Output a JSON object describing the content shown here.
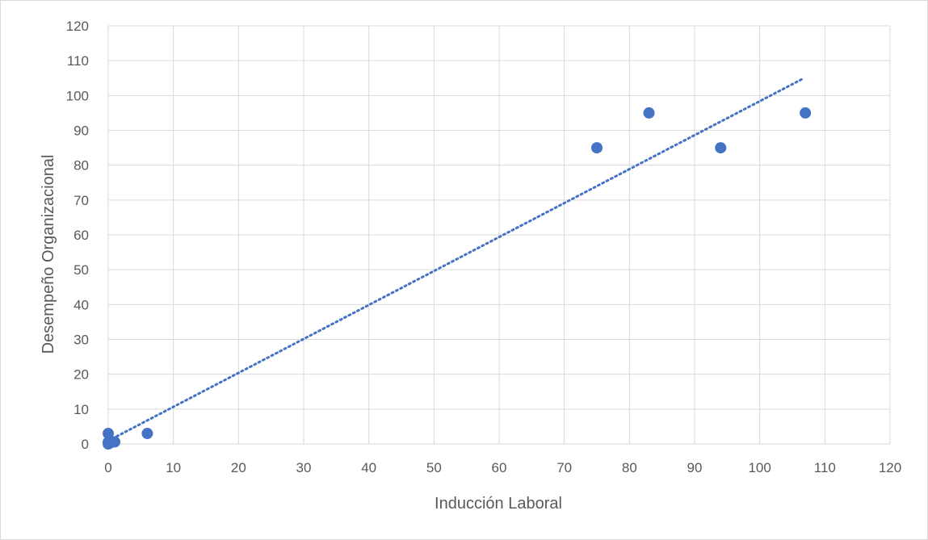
{
  "chart_data": {
    "type": "scatter",
    "title": "",
    "xlabel": "Inducción Laboral",
    "ylabel": "Desempeño Organizacional",
    "xlim": [
      0,
      120
    ],
    "ylim": [
      0,
      120
    ],
    "xticks": [
      0,
      10,
      20,
      30,
      40,
      50,
      60,
      70,
      80,
      90,
      100,
      110,
      120
    ],
    "yticks": [
      0,
      10,
      20,
      30,
      40,
      50,
      60,
      70,
      80,
      90,
      100,
      110,
      120
    ],
    "grid": true,
    "legend": "none",
    "series": [
      {
        "points": [
          {
            "x": 0,
            "y": 3
          },
          {
            "x": 0,
            "y": 0.5
          },
          {
            "x": 0,
            "y": 0
          },
          {
            "x": 0.3,
            "y": 0.3
          },
          {
            "x": 1,
            "y": 0.6
          },
          {
            "x": 6,
            "y": 3
          },
          {
            "x": 75,
            "y": 85
          },
          {
            "x": 83,
            "y": 95
          },
          {
            "x": 94,
            "y": 85
          },
          {
            "x": 107,
            "y": 95
          }
        ],
        "color": "#4472c4"
      }
    ],
    "trendline": {
      "type": "linear",
      "style": "dotted",
      "color": "#4472c4",
      "x": [
        0,
        106.5
      ],
      "y": [
        0.9,
        104.7
      ]
    }
  }
}
